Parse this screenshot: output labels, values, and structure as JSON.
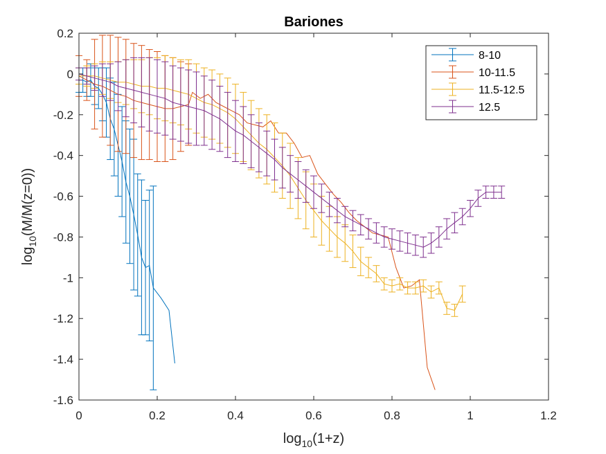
{
  "chart_data": {
    "type": "line",
    "title": "Bariones",
    "xlabel_main": "log",
    "xlabel_sub": "10",
    "xlabel_rest": "(1+z)",
    "ylabel_main": "log",
    "ylabel_sub": "10",
    "ylabel_rest": "(M/M(z=0))",
    "xlim": [
      0,
      1.2
    ],
    "ylim": [
      -1.6,
      0.2
    ],
    "xticks": [
      0,
      0.2,
      0.4,
      0.6,
      0.8,
      1,
      1.2
    ],
    "xtick_labels": [
      "0",
      "0.2",
      "0.4",
      "0.6",
      "0.8",
      "1",
      "1.2"
    ],
    "yticks": [
      0.2,
      0,
      -0.2,
      -0.4,
      -0.6,
      -0.8,
      -1,
      -1.2,
      -1.4,
      -1.6
    ],
    "ytick_labels": [
      "0.2",
      "0",
      "-0.2",
      "-0.4",
      "-0.6",
      "-0.8",
      "-1",
      "-1.2",
      "-1.4",
      "-1.6"
    ],
    "grid": false,
    "legend_position": "top-right",
    "series": [
      {
        "name": "8-10",
        "color": "#0072BD",
        "x": [
          0.0,
          0.01,
          0.02,
          0.03,
          0.04,
          0.05,
          0.06,
          0.07,
          0.08,
          0.09,
          0.1,
          0.11,
          0.12,
          0.13,
          0.14,
          0.15,
          0.16,
          0.17,
          0.18,
          0.19,
          0.21,
          0.23,
          0.245
        ],
        "y": [
          -0.03,
          -0.03,
          -0.04,
          -0.03,
          -0.06,
          -0.07,
          -0.1,
          -0.14,
          -0.22,
          -0.27,
          -0.35,
          -0.43,
          -0.53,
          -0.6,
          -0.69,
          -0.79,
          -0.9,
          -0.95,
          -0.94,
          -1.05,
          -1.1,
          -1.16,
          -1.42
        ],
        "err": [
          0.06,
          0.06,
          0.07,
          0.08,
          0.09,
          0.1,
          0.13,
          0.17,
          0.2,
          0.23,
          0.25,
          0.27,
          0.3,
          0.33,
          0.37,
          0.3,
          0.38,
          0.33,
          0.37,
          0.5,
          0.0,
          0.0,
          0.0
        ]
      },
      {
        "name": "10-11.5",
        "color": "#D95319",
        "x": [
          0.0,
          0.02,
          0.04,
          0.06,
          0.08,
          0.1,
          0.12,
          0.14,
          0.16,
          0.18,
          0.2,
          0.22,
          0.24,
          0.26,
          0.28,
          0.29,
          0.31,
          0.33,
          0.35,
          0.37,
          0.39,
          0.41,
          0.43,
          0.45,
          0.47,
          0.49,
          0.51,
          0.53,
          0.55,
          0.57,
          0.59,
          0.61,
          0.63,
          0.65,
          0.67,
          0.69,
          0.71,
          0.73,
          0.75,
          0.77,
          0.79,
          0.81,
          0.83,
          0.85,
          0.87,
          0.89,
          0.91
        ],
        "y": [
          -0.01,
          -0.03,
          -0.05,
          -0.06,
          -0.08,
          -0.1,
          -0.11,
          -0.13,
          -0.14,
          -0.15,
          -0.16,
          -0.17,
          -0.17,
          -0.16,
          -0.15,
          -0.09,
          -0.12,
          -0.1,
          -0.14,
          -0.16,
          -0.18,
          -0.2,
          -0.24,
          -0.25,
          -0.26,
          -0.23,
          -0.29,
          -0.29,
          -0.34,
          -0.41,
          -0.4,
          -0.49,
          -0.54,
          -0.59,
          -0.63,
          -0.68,
          -0.72,
          -0.75,
          -0.78,
          -0.79,
          -0.8,
          -0.95,
          -1.05,
          -1.04,
          -1.01,
          -1.44,
          -1.55
        ],
        "err": [
          0.1,
          0.1,
          0.22,
          0.25,
          0.27,
          0.28,
          0.28,
          0.28,
          0.28,
          0.27,
          0.27,
          0.26,
          0.25,
          0.22,
          0.2,
          0.0,
          0.0,
          0.0,
          0.0,
          0.0,
          0.0,
          0.0,
          0.0,
          0.0,
          0.0,
          0.0,
          0.0,
          0.0,
          0.0,
          0.0,
          0.0,
          0.0,
          0.0,
          0.0,
          0.0,
          0.0,
          0.0,
          0.0,
          0.0,
          0.0,
          0.0,
          0.0,
          0.0,
          0.0,
          0.0,
          0.0,
          0.0
        ]
      },
      {
        "name": "11.5-12.5",
        "color": "#EDB120",
        "x": [
          0.0,
          0.02,
          0.04,
          0.06,
          0.08,
          0.1,
          0.12,
          0.14,
          0.16,
          0.18,
          0.2,
          0.22,
          0.24,
          0.26,
          0.28,
          0.3,
          0.32,
          0.34,
          0.36,
          0.38,
          0.4,
          0.42,
          0.44,
          0.46,
          0.48,
          0.5,
          0.52,
          0.54,
          0.56,
          0.58,
          0.6,
          0.62,
          0.64,
          0.66,
          0.68,
          0.7,
          0.72,
          0.74,
          0.76,
          0.78,
          0.8,
          0.82,
          0.84,
          0.86,
          0.88,
          0.9,
          0.92,
          0.94,
          0.96,
          0.98
        ],
        "y": [
          -0.01,
          -0.01,
          -0.01,
          -0.02,
          -0.03,
          -0.04,
          -0.04,
          -0.05,
          -0.06,
          -0.06,
          -0.07,
          -0.07,
          -0.08,
          -0.09,
          -0.1,
          -0.12,
          -0.14,
          -0.15,
          -0.17,
          -0.19,
          -0.22,
          -0.26,
          -0.3,
          -0.34,
          -0.37,
          -0.41,
          -0.45,
          -0.5,
          -0.56,
          -0.62,
          -0.67,
          -0.72,
          -0.76,
          -0.8,
          -0.83,
          -0.87,
          -0.92,
          -0.95,
          -0.98,
          -1.03,
          -1.04,
          -1.03,
          -1.05,
          -1.05,
          -1.04,
          -1.07,
          -1.05,
          -1.15,
          -1.16,
          -1.08
        ],
        "err": [
          0.04,
          0.05,
          0.06,
          0.08,
          0.09,
          0.1,
          0.11,
          0.12,
          0.13,
          0.14,
          0.15,
          0.16,
          0.16,
          0.16,
          0.17,
          0.17,
          0.17,
          0.17,
          0.17,
          0.17,
          0.17,
          0.17,
          0.17,
          0.17,
          0.17,
          0.17,
          0.16,
          0.16,
          0.15,
          0.14,
          0.13,
          0.12,
          0.11,
          0.1,
          0.09,
          0.08,
          0.07,
          0.05,
          0.04,
          0.03,
          0.03,
          0.03,
          0.03,
          0.03,
          0.03,
          0.03,
          0.03,
          0.03,
          0.03,
          0.04
        ]
      },
      {
        "name": "12.5",
        "color": "#7E2F8E",
        "x": [
          0.0,
          0.02,
          0.04,
          0.06,
          0.08,
          0.1,
          0.12,
          0.14,
          0.16,
          0.18,
          0.2,
          0.22,
          0.24,
          0.26,
          0.28,
          0.3,
          0.32,
          0.34,
          0.36,
          0.38,
          0.4,
          0.42,
          0.44,
          0.46,
          0.48,
          0.5,
          0.52,
          0.54,
          0.56,
          0.58,
          0.6,
          0.62,
          0.64,
          0.66,
          0.68,
          0.7,
          0.72,
          0.74,
          0.76,
          0.78,
          0.8,
          0.82,
          0.84,
          0.86,
          0.88,
          0.9,
          0.92,
          0.94,
          0.96,
          0.98,
          1.0,
          1.02,
          1.04,
          1.06,
          1.08
        ],
        "y": [
          0.0,
          -0.01,
          -0.02,
          -0.03,
          -0.04,
          -0.06,
          -0.07,
          -0.08,
          -0.09,
          -0.1,
          -0.11,
          -0.12,
          -0.14,
          -0.15,
          -0.16,
          -0.17,
          -0.18,
          -0.2,
          -0.22,
          -0.25,
          -0.28,
          -0.3,
          -0.33,
          -0.36,
          -0.39,
          -0.42,
          -0.46,
          -0.49,
          -0.52,
          -0.55,
          -0.58,
          -0.61,
          -0.64,
          -0.67,
          -0.7,
          -0.72,
          -0.74,
          -0.76,
          -0.78,
          -0.8,
          -0.81,
          -0.82,
          -0.83,
          -0.84,
          -0.85,
          -0.83,
          -0.8,
          -0.76,
          -0.73,
          -0.7,
          -0.66,
          -0.61,
          -0.58,
          -0.58,
          -0.58
        ],
        "err": [
          0.03,
          0.04,
          0.06,
          0.08,
          0.09,
          0.12,
          0.14,
          0.16,
          0.17,
          0.18,
          0.18,
          0.18,
          0.18,
          0.18,
          0.18,
          0.18,
          0.17,
          0.17,
          0.16,
          0.16,
          0.15,
          0.14,
          0.13,
          0.12,
          0.11,
          0.1,
          0.1,
          0.09,
          0.09,
          0.08,
          0.08,
          0.07,
          0.06,
          0.06,
          0.05,
          0.05,
          0.05,
          0.05,
          0.05,
          0.05,
          0.05,
          0.05,
          0.05,
          0.05,
          0.05,
          0.05,
          0.05,
          0.05,
          0.05,
          0.04,
          0.04,
          0.04,
          0.03,
          0.03,
          0.03
        ]
      }
    ]
  }
}
